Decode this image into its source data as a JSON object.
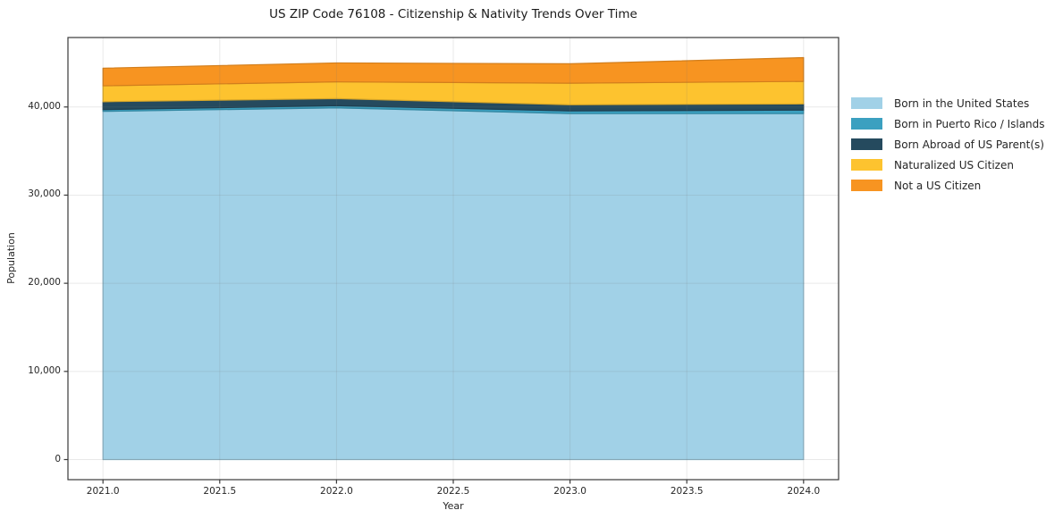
{
  "title": "US ZIP Code 76108 - Citizenship & Nativity Trends Over Time",
  "chart_data": {
    "type": "area",
    "stacked": true,
    "title": "US ZIP Code 76108 - Citizenship & Nativity Trends Over Time",
    "xlabel": "Year",
    "ylabel": "Population",
    "x": [
      2021,
      2022,
      2023,
      2024
    ],
    "series": [
      {
        "name": "Born in the United States",
        "color": "#a1d1e7",
        "values": [
          39500,
          39900,
          39250,
          39250
        ]
      },
      {
        "name": "Born in Puerto Rico / Islands",
        "color": "#3ba0c0",
        "values": [
          200,
          250,
          300,
          400
        ]
      },
      {
        "name": "Born Abroad of US Parent(s)",
        "color": "#254a5e",
        "values": [
          900,
          800,
          700,
          700
        ]
      },
      {
        "name": "Naturalized US Citizen",
        "color": "#fdc32f",
        "values": [
          1800,
          1900,
          2450,
          2550
        ]
      },
      {
        "name": "Not a US Citizen",
        "color": "#f79421",
        "values": [
          2000,
          2150,
          2200,
          2700
        ]
      }
    ],
    "x_ticks": [
      {
        "value": 2021.0,
        "label": "2021.0"
      },
      {
        "value": 2021.5,
        "label": "2021.5"
      },
      {
        "value": 2022.0,
        "label": "2022.0"
      },
      {
        "value": 2022.5,
        "label": "2022.5"
      },
      {
        "value": 2023.0,
        "label": "2023.0"
      },
      {
        "value": 2023.5,
        "label": "2023.5"
      },
      {
        "value": 2024.0,
        "label": "2024.0"
      }
    ],
    "y_ticks": [
      {
        "value": 0,
        "label": "0"
      },
      {
        "value": 10000,
        "label": "10,000"
      },
      {
        "value": 20000,
        "label": "20,000"
      },
      {
        "value": 30000,
        "label": "30,000"
      },
      {
        "value": 40000,
        "label": "40,000"
      }
    ],
    "xlim": [
      2020.85,
      2024.15
    ],
    "ylim": [
      -2280,
      47880
    ],
    "grid": true,
    "legend_position": "right"
  }
}
